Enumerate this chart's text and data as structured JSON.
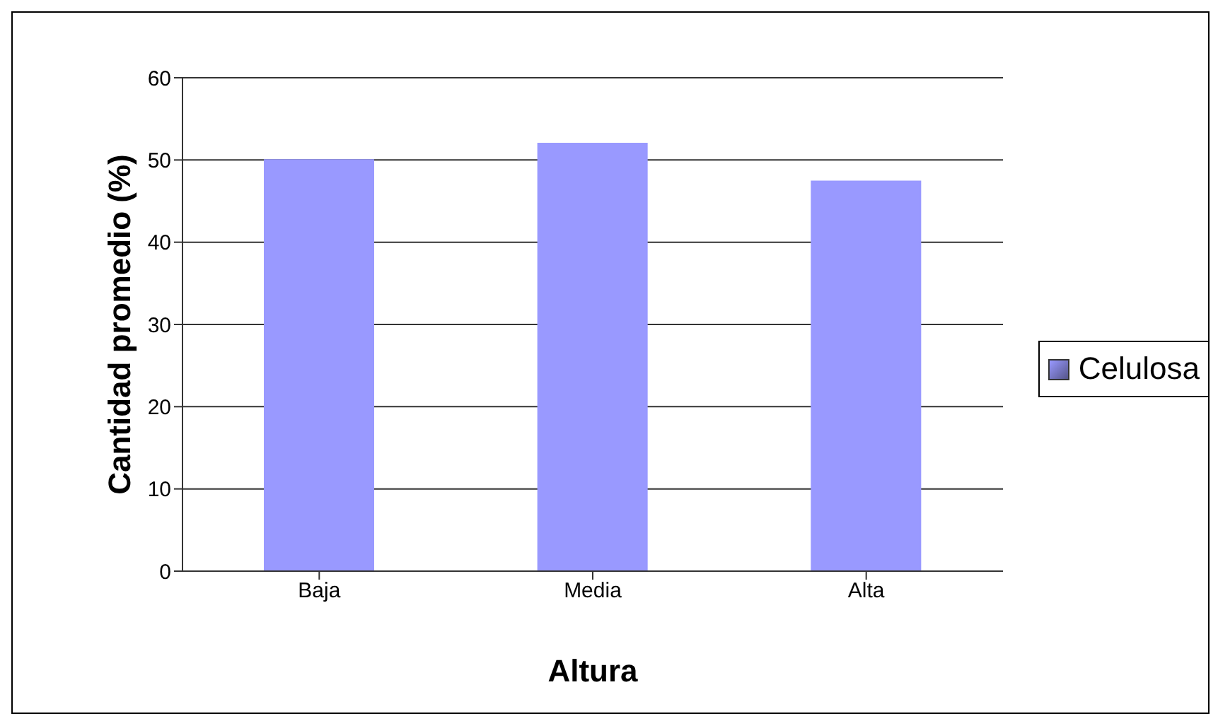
{
  "chart_data": {
    "type": "bar",
    "xlabel": "Altura",
    "ylabel": "Cantidad promedio (%)",
    "categories": [
      "Baja",
      "Media",
      "Alta"
    ],
    "series": [
      {
        "name": "Celulosa",
        "color": "#9999ff",
        "values": [
          50,
          52,
          47.4
        ]
      }
    ],
    "ylim": [
      0,
      60
    ],
    "yticks": [
      0,
      10,
      20,
      30,
      40,
      50,
      60
    ],
    "grid": "y",
    "legend": "right"
  }
}
